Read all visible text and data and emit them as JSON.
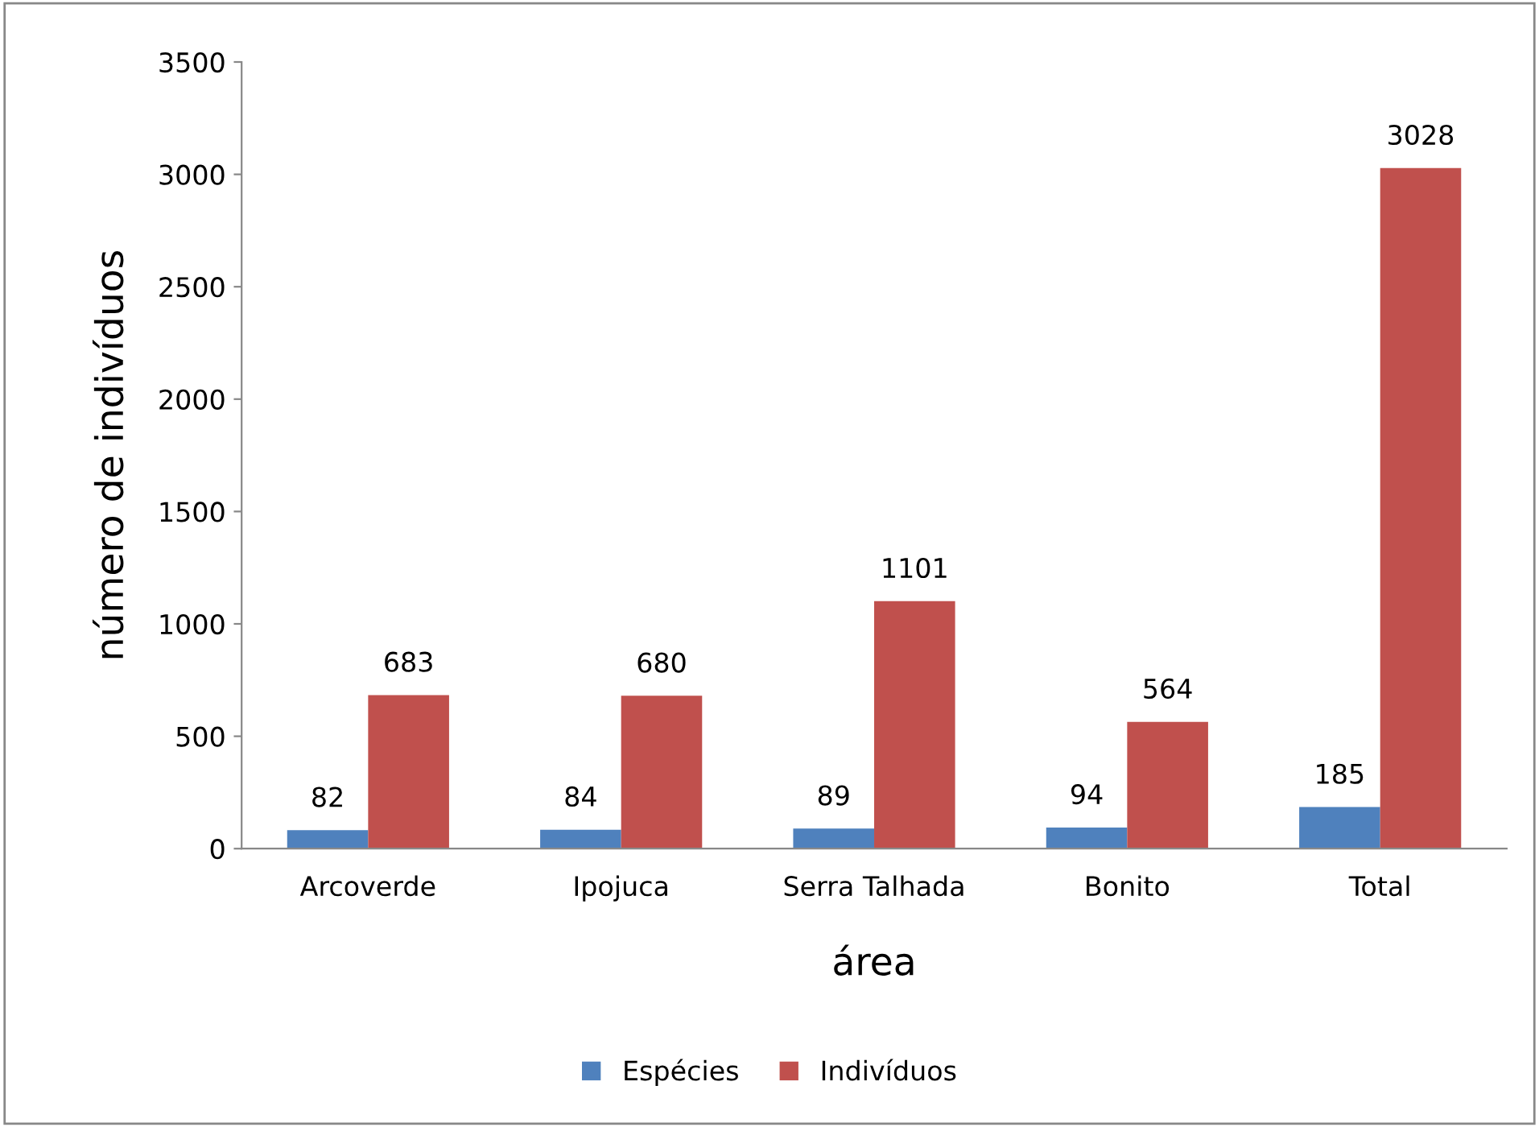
{
  "chart_data": {
    "type": "bar",
    "xlabel": "área",
    "ylabel": "número de indivíduos",
    "categories": [
      "Arcoverde",
      "Ipojuca",
      "Serra Talhada",
      "Bonito",
      "Total"
    ],
    "series": [
      {
        "name": "Espécies",
        "color": "#4f81bd",
        "values": [
          82,
          84,
          89,
          94,
          185
        ]
      },
      {
        "name": "Indivíduos",
        "color": "#c0504d",
        "values": [
          683,
          680,
          1101,
          564,
          3028
        ]
      }
    ],
    "ylim": [
      0,
      3500
    ],
    "yticks": [
      0,
      500,
      1000,
      1500,
      2000,
      2500,
      3000,
      3500
    ],
    "grid": false,
    "legend": "bottom",
    "data_labels": true
  }
}
